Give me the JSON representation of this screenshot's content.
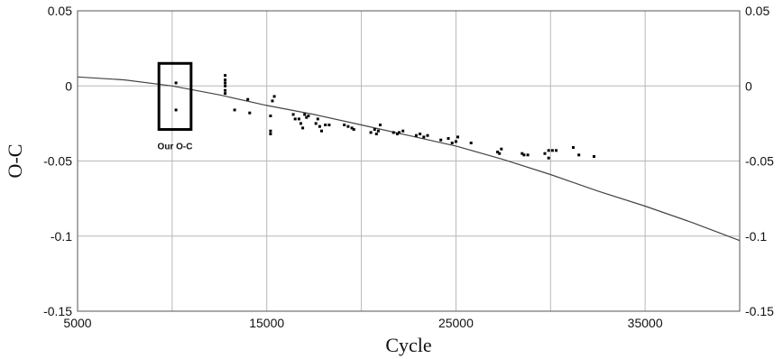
{
  "chart_data": {
    "type": "scatter",
    "xlabel": "Cycle",
    "ylabel": "O-C",
    "xlim": [
      5000,
      40000
    ],
    "ylim": [
      -0.15,
      0.05
    ],
    "x_ticks": [
      5000,
      15000,
      25000,
      35000
    ],
    "y_ticks": [
      0.05,
      0,
      -0.05,
      -0.1,
      -0.15
    ],
    "y_tick_labels": [
      "0.05",
      "0",
      "-0.05",
      "-0.1",
      "-0.15"
    ],
    "right_y_tick_labels": [
      "0.05",
      "0",
      "-0.05",
      "-0.1",
      "-0.15"
    ],
    "grid": true,
    "annotation": {
      "text": "Our O-C",
      "x_range": [
        9300,
        11000
      ],
      "y_range": [
        -0.029,
        0.015
      ]
    },
    "series": [
      {
        "kind": "points",
        "points": [
          [
            10200,
            0.002
          ],
          [
            10200,
            -0.016
          ],
          [
            12800,
            0.007
          ],
          [
            12800,
            0.004
          ],
          [
            12800,
            0.002
          ],
          [
            12800,
            0.0
          ],
          [
            12800,
            -0.003
          ],
          [
            12800,
            -0.005
          ],
          [
            13300,
            -0.016
          ],
          [
            14000,
            -0.009
          ],
          [
            14100,
            -0.018
          ],
          [
            15200,
            -0.02
          ],
          [
            15200,
            -0.03
          ],
          [
            15200,
            -0.032
          ],
          [
            15400,
            -0.007
          ],
          [
            15300,
            -0.01
          ],
          [
            16400,
            -0.019
          ],
          [
            16500,
            -0.022
          ],
          [
            16700,
            -0.022
          ],
          [
            16800,
            -0.025
          ],
          [
            16900,
            -0.028
          ],
          [
            17000,
            -0.019
          ],
          [
            17100,
            -0.021
          ],
          [
            17200,
            -0.02
          ],
          [
            17600,
            -0.025
          ],
          [
            17700,
            -0.022
          ],
          [
            17800,
            -0.027
          ],
          [
            17900,
            -0.03
          ],
          [
            18100,
            -0.026
          ],
          [
            18300,
            -0.026
          ],
          [
            19100,
            -0.026
          ],
          [
            19300,
            -0.027
          ],
          [
            19500,
            -0.028
          ],
          [
            19600,
            -0.029
          ],
          [
            20500,
            -0.031
          ],
          [
            20700,
            -0.029
          ],
          [
            20800,
            -0.032
          ],
          [
            20900,
            -0.03
          ],
          [
            21000,
            -0.026
          ],
          [
            21700,
            -0.031
          ],
          [
            21900,
            -0.032
          ],
          [
            22000,
            -0.031
          ],
          [
            22200,
            -0.03
          ],
          [
            22900,
            -0.033
          ],
          [
            23100,
            -0.032
          ],
          [
            23300,
            -0.034
          ],
          [
            23500,
            -0.033
          ],
          [
            24200,
            -0.036
          ],
          [
            24600,
            -0.035
          ],
          [
            24800,
            -0.038
          ],
          [
            25000,
            -0.037
          ],
          [
            25100,
            -0.034
          ],
          [
            25800,
            -0.038
          ],
          [
            27200,
            -0.044
          ],
          [
            27300,
            -0.045
          ],
          [
            27400,
            -0.042
          ],
          [
            28500,
            -0.045
          ],
          [
            28600,
            -0.046
          ],
          [
            28800,
            -0.046
          ],
          [
            29700,
            -0.045
          ],
          [
            29900,
            -0.043
          ],
          [
            29900,
            -0.048
          ],
          [
            30100,
            -0.043
          ],
          [
            30300,
            -0.043
          ],
          [
            31200,
            -0.041
          ],
          [
            31500,
            -0.046
          ],
          [
            32300,
            -0.047
          ]
        ]
      },
      {
        "kind": "fit-curve",
        "points": [
          [
            5000,
            0.006
          ],
          [
            7500,
            0.004
          ],
          [
            10000,
            0.0
          ],
          [
            12500,
            -0.006
          ],
          [
            15000,
            -0.013
          ],
          [
            17500,
            -0.019
          ],
          [
            20000,
            -0.026
          ],
          [
            22500,
            -0.033
          ],
          [
            25000,
            -0.04
          ],
          [
            27500,
            -0.049
          ],
          [
            30000,
            -0.059
          ],
          [
            32500,
            -0.07
          ],
          [
            35000,
            -0.08
          ],
          [
            37500,
            -0.091
          ],
          [
            40000,
            -0.103
          ]
        ]
      }
    ]
  }
}
